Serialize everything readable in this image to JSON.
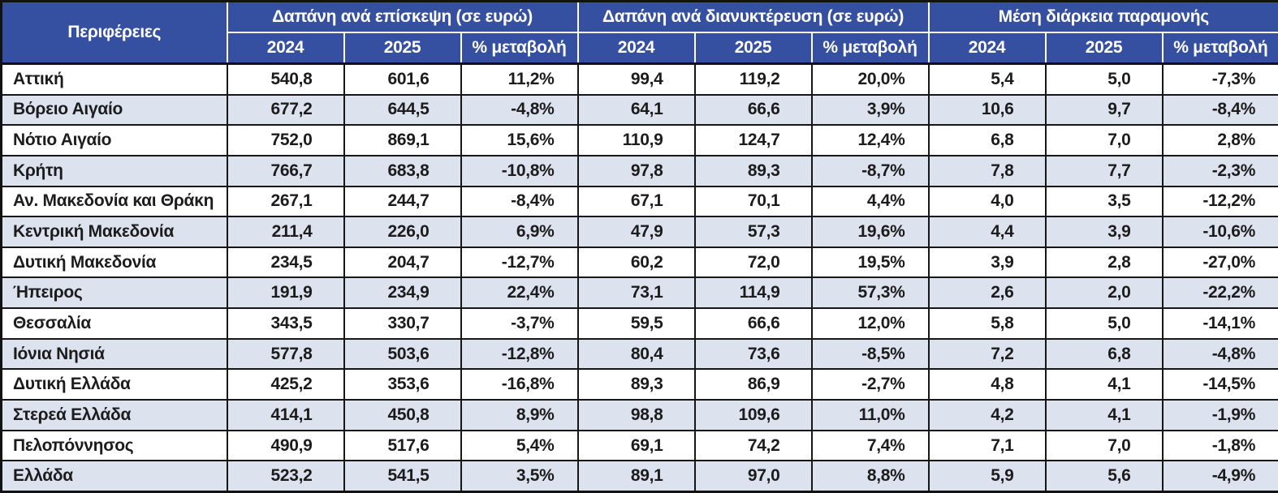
{
  "table": {
    "row_header": "Περιφέρειες",
    "groups": [
      {
        "label": "Δαπάνη ανά επίσκεψη (σε ευρώ)"
      },
      {
        "label": "Δαπάνη ανά διανυκτέρευση (σε ευρώ)"
      },
      {
        "label": "Μέση διάρκεια παραμονής"
      }
    ],
    "sub_headers": [
      "2024",
      "2025",
      "% μεταβολή"
    ],
    "rows": [
      {
        "region": "Αττική",
        "values": [
          "540,8",
          "601,6",
          "11,2%",
          "99,4",
          "119,2",
          "20,0%",
          "5,4",
          "5,0",
          "-7,3%"
        ]
      },
      {
        "region": "Βόρειο Αιγαίο",
        "values": [
          "677,2",
          "644,5",
          "-4,8%",
          "64,1",
          "66,6",
          "3,9%",
          "10,6",
          "9,7",
          "-8,4%"
        ]
      },
      {
        "region": "Νότιο Αιγαίο",
        "values": [
          "752,0",
          "869,1",
          "15,6%",
          "110,9",
          "124,7",
          "12,4%",
          "6,8",
          "7,0",
          "2,8%"
        ]
      },
      {
        "region": "Κρήτη",
        "values": [
          "766,7",
          "683,8",
          "-10,8%",
          "97,8",
          "89,3",
          "-8,7%",
          "7,8",
          "7,7",
          "-2,3%"
        ]
      },
      {
        "region": "Αν. Μακεδονία και Θράκη",
        "values": [
          "267,1",
          "244,7",
          "-8,4%",
          "67,1",
          "70,1",
          "4,4%",
          "4,0",
          "3,5",
          "-12,2%"
        ]
      },
      {
        "region": "Κεντρική Μακεδονία",
        "values": [
          "211,4",
          "226,0",
          "6,9%",
          "47,9",
          "57,3",
          "19,6%",
          "4,4",
          "3,9",
          "-10,6%"
        ]
      },
      {
        "region": "Δυτική Μακεδονία",
        "values": [
          "234,5",
          "204,7",
          "-12,7%",
          "60,2",
          "72,0",
          "19,5%",
          "3,9",
          "2,8",
          "-27,0%"
        ]
      },
      {
        "region": "Ήπειρος",
        "values": [
          "191,9",
          "234,9",
          "22,4%",
          "73,1",
          "114,9",
          "57,3%",
          "2,6",
          "2,0",
          "-22,2%"
        ]
      },
      {
        "region": "Θεσσαλία",
        "values": [
          "343,5",
          "330,7",
          "-3,7%",
          "59,5",
          "66,6",
          "12,0%",
          "5,8",
          "5,0",
          "-14,1%"
        ]
      },
      {
        "region": "Ιόνια Νησιά",
        "values": [
          "577,8",
          "503,6",
          "-12,8%",
          "80,4",
          "73,6",
          "-8,5%",
          "7,2",
          "6,8",
          "-4,8%"
        ]
      },
      {
        "region": "Δυτική Ελλάδα",
        "values": [
          "425,2",
          "353,6",
          "-16,8%",
          "89,3",
          "86,9",
          "-2,7%",
          "4,8",
          "4,1",
          "-14,5%"
        ]
      },
      {
        "region": "Στερεά Ελλάδα",
        "values": [
          "414,1",
          "450,8",
          "8,9%",
          "98,8",
          "109,6",
          "11,0%",
          "4,2",
          "4,1",
          "-1,9%"
        ]
      },
      {
        "region": "Πελοπόννησος",
        "values": [
          "490,9",
          "517,6",
          "5,4%",
          "69,1",
          "74,2",
          "7,4%",
          "7,1",
          "7,0",
          "-1,8%"
        ]
      },
      {
        "region": "Ελλάδα",
        "values": [
          "523,2",
          "541,5",
          "3,5%",
          "89,1",
          "97,0",
          "8,8%",
          "5,9",
          "5,6",
          "-4,9%"
        ]
      }
    ]
  },
  "colors": {
    "header_bg": "#3550A0",
    "header_text": "#FFFFFF",
    "stripe_bg": "#DDE2EF",
    "border": "#161616",
    "body_text": "#1C1C1C"
  },
  "chart_data": {
    "type": "table",
    "title": "",
    "column_groups": [
      "Δαπάνη ανά επίσκεψη (σε ευρώ)",
      "Δαπάνη ανά διανυκτέρευση (σε ευρώ)",
      "Μέση διάρκεια παραμονής"
    ],
    "columns": [
      "Περιφέρειες",
      "Δαπάνη ανά επίσκεψη 2024",
      "Δαπάνη ανά επίσκεψη 2025",
      "Δαπάνη ανά επίσκεψη % μεταβολή",
      "Δαπάνη ανά διανυκτέρευση 2024",
      "Δαπάνη ανά διανυκτέρευση 2025",
      "Δαπάνη ανά διανυκτέρευση % μεταβολή",
      "Μέση διάρκεια παραμονής 2024",
      "Μέση διάρκεια παραμονής 2025",
      "Μέση διάρκεια παραμονής % μεταβολή"
    ],
    "rows": [
      [
        "Αττική",
        540.8,
        601.6,
        11.2,
        99.4,
        119.2,
        20.0,
        5.4,
        5.0,
        -7.3
      ],
      [
        "Βόρειο Αιγαίο",
        677.2,
        644.5,
        -4.8,
        64.1,
        66.6,
        3.9,
        10.6,
        9.7,
        -8.4
      ],
      [
        "Νότιο Αιγαίο",
        752.0,
        869.1,
        15.6,
        110.9,
        124.7,
        12.4,
        6.8,
        7.0,
        2.8
      ],
      [
        "Κρήτη",
        766.7,
        683.8,
        -10.8,
        97.8,
        89.3,
        -8.7,
        7.8,
        7.7,
        -2.3
      ],
      [
        "Αν. Μακεδονία και Θράκη",
        267.1,
        244.7,
        -8.4,
        67.1,
        70.1,
        4.4,
        4.0,
        3.5,
        -12.2
      ],
      [
        "Κεντρική Μακεδονία",
        211.4,
        226.0,
        6.9,
        47.9,
        57.3,
        19.6,
        4.4,
        3.9,
        -10.6
      ],
      [
        "Δυτική Μακεδονία",
        234.5,
        204.7,
        -12.7,
        60.2,
        72.0,
        19.5,
        3.9,
        2.8,
        -27.0
      ],
      [
        "Ήπειρος",
        191.9,
        234.9,
        22.4,
        73.1,
        114.9,
        57.3,
        2.6,
        2.0,
        -22.2
      ],
      [
        "Θεσσαλία",
        343.5,
        330.7,
        -3.7,
        59.5,
        66.6,
        12.0,
        5.8,
        5.0,
        -14.1
      ],
      [
        "Ιόνια Νησιά",
        577.8,
        503.6,
        -12.8,
        80.4,
        73.6,
        -8.5,
        7.2,
        6.8,
        -4.8
      ],
      [
        "Δυτική Ελλάδα",
        425.2,
        353.6,
        -16.8,
        89.3,
        86.9,
        -2.7,
        4.8,
        4.1,
        -14.5
      ],
      [
        "Στερεά Ελλάδα",
        414.1,
        450.8,
        8.9,
        98.8,
        109.6,
        11.0,
        4.2,
        4.1,
        -1.9
      ],
      [
        "Πελοπόννησος",
        490.9,
        517.6,
        5.4,
        69.1,
        74.2,
        7.4,
        7.1,
        7.0,
        -1.8
      ],
      [
        "Ελλάδα",
        523.2,
        541.5,
        3.5,
        89.1,
        97.0,
        8.8,
        5.9,
        5.6,
        -4.9
      ]
    ]
  }
}
